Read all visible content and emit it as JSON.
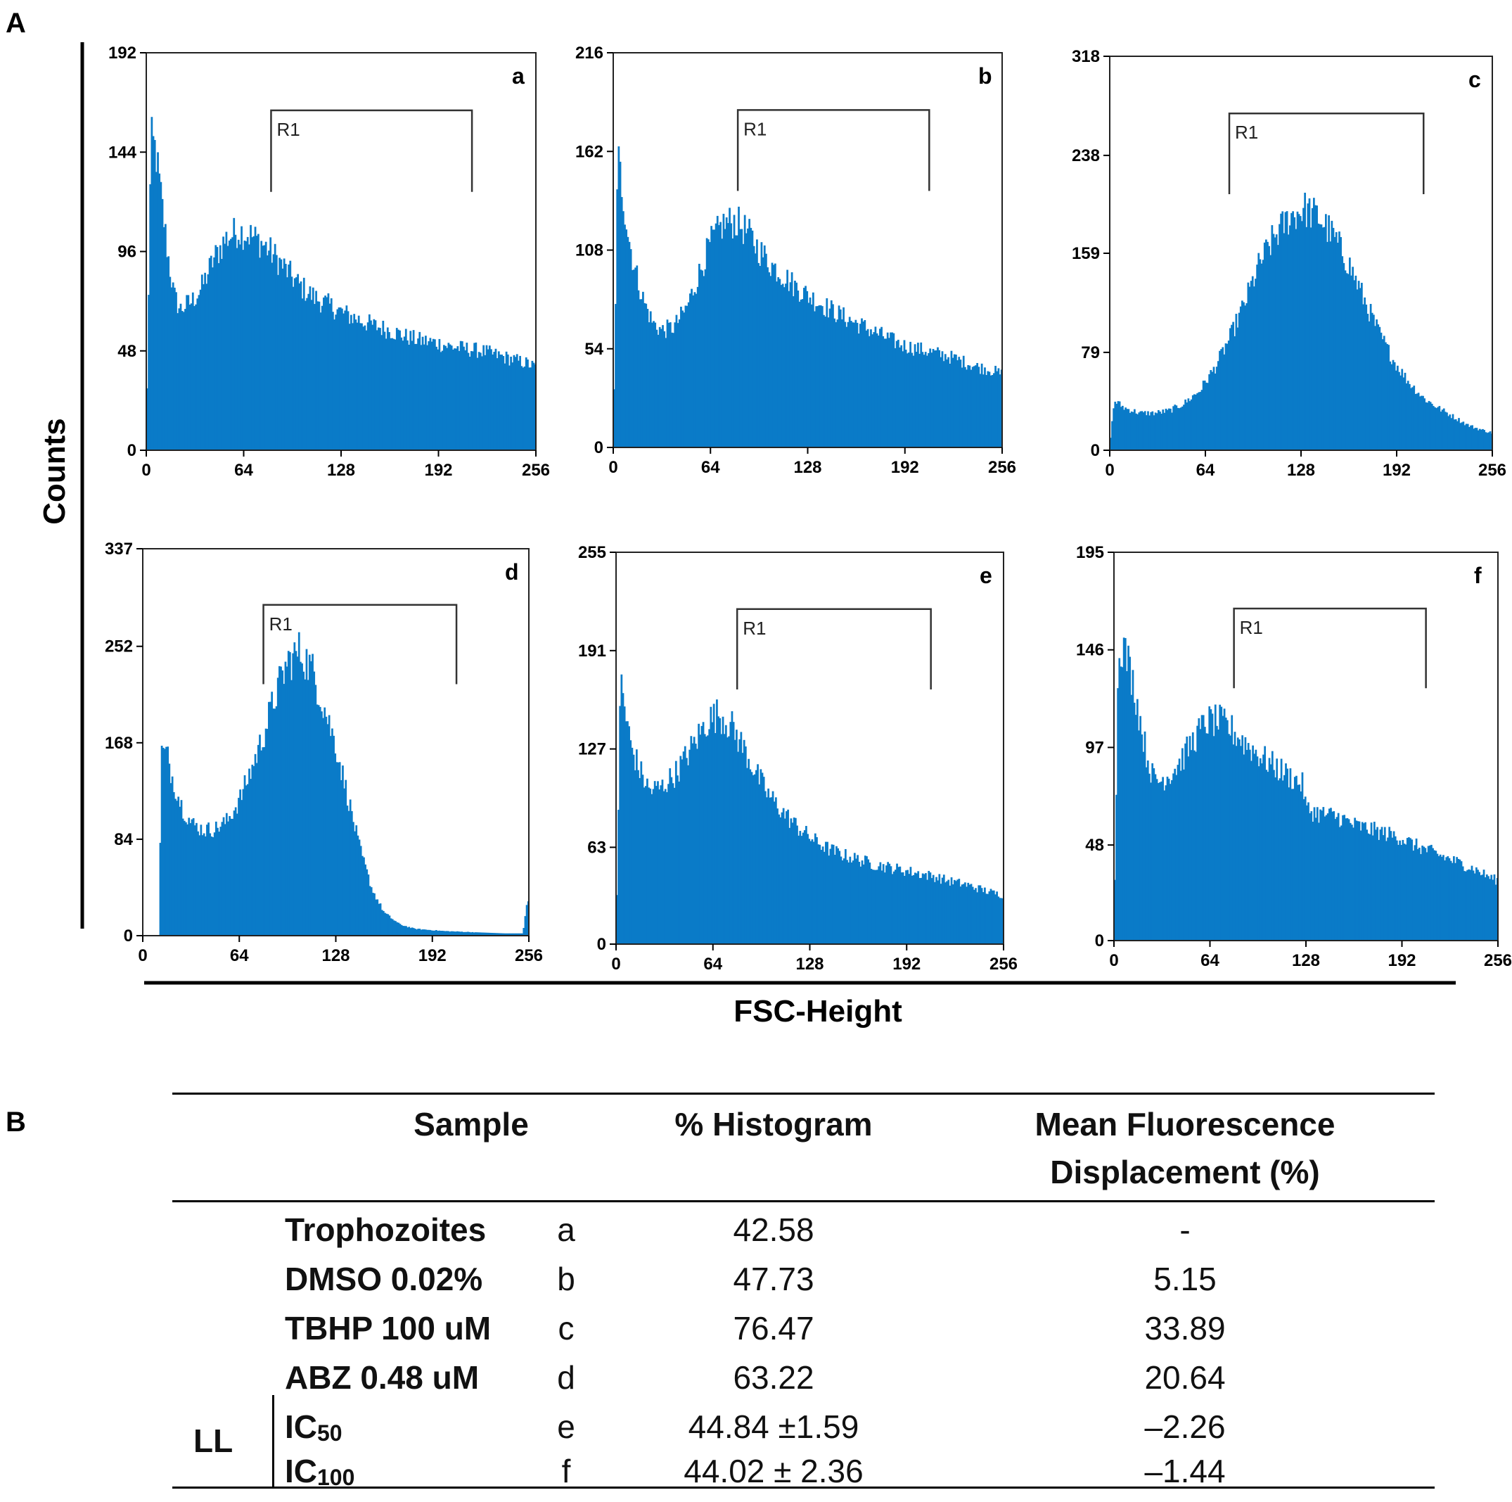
{
  "figure": {
    "panel_a_label": "A",
    "panel_b_label": "B",
    "y_axis_label": "Counts",
    "x_axis_label": "FSC-Height",
    "gate_label": "R1",
    "bar_color": "#0a7bc8"
  },
  "chart_data": [
    {
      "type": "histogram",
      "label": "a",
      "xlim": [
        0,
        256
      ],
      "ylim": [
        0,
        192
      ],
      "xticks": [
        "0",
        "64",
        "128",
        "192",
        "256"
      ],
      "yticks": [
        "0",
        "48",
        "96",
        "144",
        "192"
      ],
      "gate": {
        "name": "R1",
        "x_range": [
          82,
          214
        ]
      },
      "profile": [
        [
          0,
          5
        ],
        [
          3,
          150
        ],
        [
          6,
          145
        ],
        [
          10,
          120
        ],
        [
          14,
          95
        ],
        [
          18,
          75
        ],
        [
          22,
          68
        ],
        [
          26,
          70
        ],
        [
          30,
          72
        ],
        [
          36,
          78
        ],
        [
          44,
          92
        ],
        [
          52,
          102
        ],
        [
          60,
          106
        ],
        [
          68,
          104
        ],
        [
          76,
          100
        ],
        [
          84,
          94
        ],
        [
          92,
          87
        ],
        [
          100,
          80
        ],
        [
          110,
          74
        ],
        [
          120,
          70
        ],
        [
          130,
          66
        ],
        [
          140,
          63
        ],
        [
          150,
          60
        ],
        [
          160,
          58
        ],
        [
          170,
          55
        ],
        [
          180,
          53
        ],
        [
          190,
          52
        ],
        [
          200,
          50
        ],
        [
          210,
          49
        ],
        [
          220,
          48
        ],
        [
          230,
          46
        ],
        [
          240,
          44
        ],
        [
          250,
          42
        ],
        [
          256,
          40
        ]
      ]
    },
    {
      "type": "histogram",
      "label": "b",
      "xlim": [
        0,
        256
      ],
      "ylim": [
        0,
        216
      ],
      "xticks": [
        "0",
        "64",
        "128",
        "192",
        "256"
      ],
      "yticks": [
        "0",
        "54",
        "108",
        "162",
        "216"
      ],
      "gate": {
        "name": "R1",
        "x_range": [
          82,
          208
        ]
      },
      "profile": [
        [
          0,
          5
        ],
        [
          3,
          160
        ],
        [
          6,
          140
        ],
        [
          10,
          115
        ],
        [
          14,
          98
        ],
        [
          20,
          80
        ],
        [
          26,
          68
        ],
        [
          32,
          64
        ],
        [
          40,
          66
        ],
        [
          48,
          76
        ],
        [
          56,
          94
        ],
        [
          64,
          112
        ],
        [
          72,
          122
        ],
        [
          80,
          124
        ],
        [
          88,
          118
        ],
        [
          96,
          108
        ],
        [
          104,
          100
        ],
        [
          112,
          94
        ],
        [
          120,
          88
        ],
        [
          130,
          82
        ],
        [
          140,
          77
        ],
        [
          150,
          72
        ],
        [
          160,
          68
        ],
        [
          170,
          64
        ],
        [
          180,
          60
        ],
        [
          190,
          56
        ],
        [
          200,
          54
        ],
        [
          210,
          52
        ],
        [
          220,
          50
        ],
        [
          230,
          47
        ],
        [
          240,
          44
        ],
        [
          250,
          42
        ],
        [
          256,
          40
        ]
      ]
    },
    {
      "type": "histogram",
      "label": "c",
      "xlim": [
        0,
        256
      ],
      "ylim": [
        0,
        318
      ],
      "xticks": [
        "0",
        "64",
        "128",
        "192",
        "256"
      ],
      "yticks": [
        "0",
        "79",
        "159",
        "238",
        "318"
      ],
      "gate": {
        "name": "R1",
        "x_range": [
          80,
          210
        ]
      },
      "profile": [
        [
          0,
          5
        ],
        [
          3,
          40
        ],
        [
          10,
          34
        ],
        [
          20,
          30
        ],
        [
          30,
          30
        ],
        [
          40,
          32
        ],
        [
          50,
          38
        ],
        [
          60,
          48
        ],
        [
          70,
          66
        ],
        [
          80,
          90
        ],
        [
          90,
          118
        ],
        [
          100,
          150
        ],
        [
          110,
          172
        ],
        [
          120,
          188
        ],
        [
          130,
          195
        ],
        [
          140,
          188
        ],
        [
          150,
          172
        ],
        [
          160,
          150
        ],
        [
          170,
          122
        ],
        [
          180,
          95
        ],
        [
          190,
          72
        ],
        [
          200,
          55
        ],
        [
          210,
          42
        ],
        [
          220,
          34
        ],
        [
          230,
          27
        ],
        [
          240,
          20
        ],
        [
          250,
          16
        ],
        [
          256,
          14
        ]
      ]
    },
    {
      "type": "histogram",
      "label": "d",
      "xlim": [
        0,
        256
      ],
      "ylim": [
        0,
        337
      ],
      "xticks": [
        "0",
        "64",
        "128",
        "192",
        "256"
      ],
      "yticks": [
        "0",
        "84",
        "168",
        "252",
        "337"
      ],
      "gate": {
        "name": "R1",
        "x_range": [
          80,
          208
        ]
      },
      "profile": [
        [
          0,
          0
        ],
        [
          11,
          0
        ],
        [
          12,
          160
        ],
        [
          16,
          158
        ],
        [
          20,
          135
        ],
        [
          26,
          112
        ],
        [
          32,
          98
        ],
        [
          40,
          92
        ],
        [
          48,
          93
        ],
        [
          56,
          100
        ],
        [
          64,
          118
        ],
        [
          72,
          145
        ],
        [
          80,
          175
        ],
        [
          88,
          210
        ],
        [
          96,
          238
        ],
        [
          104,
          248
        ],
        [
          112,
          232
        ],
        [
          120,
          200
        ],
        [
          128,
          165
        ],
        [
          136,
          120
        ],
        [
          144,
          75
        ],
        [
          152,
          40
        ],
        [
          160,
          20
        ],
        [
          170,
          10
        ],
        [
          180,
          6
        ],
        [
          200,
          4
        ],
        [
          220,
          3
        ],
        [
          240,
          2
        ],
        [
          252,
          2
        ],
        [
          255,
          30
        ],
        [
          256,
          30
        ]
      ]
    },
    {
      "type": "histogram",
      "label": "e",
      "xlim": [
        0,
        256
      ],
      "ylim": [
        0,
        255
      ],
      "xticks": [
        "0",
        "64",
        "128",
        "192",
        "256"
      ],
      "yticks": [
        "0",
        "63",
        "127",
        "191",
        "255"
      ],
      "gate": {
        "name": "R1",
        "x_range": [
          80,
          208
        ]
      },
      "profile": [
        [
          0,
          5
        ],
        [
          3,
          175
        ],
        [
          6,
          150
        ],
        [
          10,
          128
        ],
        [
          16,
          112
        ],
        [
          22,
          100
        ],
        [
          30,
          102
        ],
        [
          40,
          112
        ],
        [
          50,
          128
        ],
        [
          60,
          145
        ],
        [
          68,
          150
        ],
        [
          76,
          142
        ],
        [
          84,
          128
        ],
        [
          92,
          112
        ],
        [
          100,
          98
        ],
        [
          110,
          86
        ],
        [
          120,
          76
        ],
        [
          130,
          68
        ],
        [
          140,
          62
        ],
        [
          150,
          58
        ],
        [
          160,
          55
        ],
        [
          170,
          52
        ],
        [
          180,
          50
        ],
        [
          190,
          48
        ],
        [
          200,
          46
        ],
        [
          210,
          44
        ],
        [
          220,
          41
        ],
        [
          230,
          39
        ],
        [
          240,
          36
        ],
        [
          250,
          33
        ],
        [
          256,
          32
        ]
      ]
    },
    {
      "type": "histogram",
      "label": "f",
      "xlim": [
        0,
        256
      ],
      "ylim": [
        0,
        195
      ],
      "xticks": [
        "0",
        "64",
        "128",
        "192",
        "256"
      ],
      "yticks": [
        "0",
        "48",
        "97",
        "146",
        "195"
      ],
      "gate": {
        "name": "R1",
        "x_range": [
          80,
          208
        ]
      },
      "profile": [
        [
          0,
          5
        ],
        [
          3,
          150
        ],
        [
          6,
          148
        ],
        [
          10,
          138
        ],
        [
          14,
          125
        ],
        [
          18,
          108
        ],
        [
          22,
          92
        ],
        [
          26,
          82
        ],
        [
          30,
          80
        ],
        [
          38,
          84
        ],
        [
          46,
          92
        ],
        [
          54,
          102
        ],
        [
          62,
          110
        ],
        [
          70,
          110
        ],
        [
          78,
          106
        ],
        [
          86,
          100
        ],
        [
          94,
          95
        ],
        [
          102,
          90
        ],
        [
          110,
          86
        ],
        [
          118,
          82
        ],
        [
          126,
          78
        ],
        [
          128,
          66
        ],
        [
          136,
          64
        ],
        [
          150,
          62
        ],
        [
          160,
          58
        ],
        [
          170,
          56
        ],
        [
          180,
          54
        ],
        [
          190,
          52
        ],
        [
          200,
          48
        ],
        [
          210,
          45
        ],
        [
          220,
          42
        ],
        [
          230,
          39
        ],
        [
          240,
          36
        ],
        [
          250,
          32
        ],
        [
          256,
          30
        ]
      ]
    }
  ],
  "table": {
    "headers": {
      "sample": "Sample",
      "histogram": "% Histogram",
      "mfd_line1": "Mean Fluorescence",
      "mfd_line2": "Displacement (%)"
    },
    "group_label": "LL",
    "rows": [
      {
        "name": "Trophozoites",
        "letter": "a",
        "histogram": "42.58",
        "mfd": "-"
      },
      {
        "name": "DMSO 0.02%",
        "letter": "b",
        "histogram": "47.73",
        "mfd": "5.15"
      },
      {
        "name": "TBHP 100 uM",
        "letter": "c",
        "histogram": "76.47",
        "mfd": "33.89"
      },
      {
        "name": "ABZ 0.48 uM",
        "letter": "d",
        "histogram": "63.22",
        "mfd": "20.64"
      },
      {
        "name_main": "IC",
        "name_sub": "50",
        "letter": "e",
        "histogram": "44.84 ±1.59",
        "mfd": "–2.26"
      },
      {
        "name_main": "IC",
        "name_sub": "100",
        "letter": "f",
        "histogram": "44.02 ± 2.36",
        "mfd": "–1.44"
      }
    ]
  }
}
